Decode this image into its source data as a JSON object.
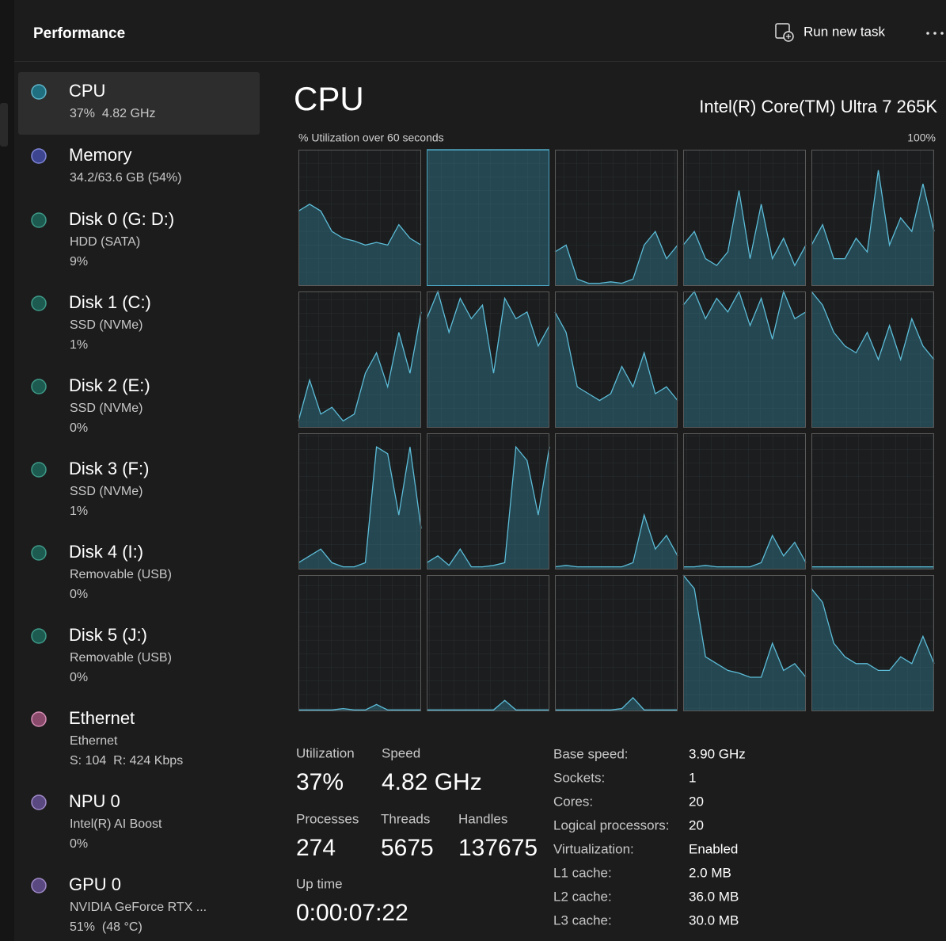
{
  "header": {
    "title": "Performance",
    "run_new_task": "Run new task"
  },
  "sidebar": [
    {
      "name": "CPU",
      "details": [
        "37%  4.82 GHz"
      ]
    },
    {
      "name": "Memory",
      "details": [
        "34.2/63.6 GB (54%)"
      ]
    },
    {
      "name": "Disk 0 (G: D:)",
      "details": [
        "HDD (SATA)",
        "9%"
      ]
    },
    {
      "name": "Disk 1 (C:)",
      "details": [
        "SSD (NVMe)",
        "1%"
      ]
    },
    {
      "name": "Disk 2 (E:)",
      "details": [
        "SSD (NVMe)",
        "0%"
      ]
    },
    {
      "name": "Disk 3 (F:)",
      "details": [
        "SSD (NVMe)",
        "1%"
      ]
    },
    {
      "name": "Disk 4 (I:)",
      "details": [
        "Removable (USB)",
        "0%"
      ]
    },
    {
      "name": "Disk 5 (J:)",
      "details": [
        "Removable (USB)",
        "0%"
      ]
    },
    {
      "name": "Ethernet",
      "details": [
        "Ethernet",
        "S: 104  R: 424 Kbps"
      ]
    },
    {
      "name": "NPU 0",
      "details": [
        "Intel(R) AI Boost",
        "0%"
      ]
    },
    {
      "name": "GPU 0",
      "details": [
        "NVIDIA GeForce RTX ...",
        "51%  (48 °C)"
      ]
    }
  ],
  "main": {
    "title": "CPU",
    "model": "Intel(R) Core(TM) Ultra 7 265K",
    "graph_caption": "% Utilization over 60 seconds",
    "graph_max_label": "100%",
    "ylim": [
      0,
      100
    ],
    "cores": [
      [
        55,
        60,
        55,
        40,
        35,
        33,
        30,
        32,
        30,
        45,
        35,
        30
      ],
      [
        100,
        100,
        100,
        100,
        100,
        100,
        100,
        100,
        100,
        100,
        100,
        100
      ],
      [
        25,
        30,
        5,
        2,
        2,
        3,
        2,
        5,
        30,
        40,
        20,
        30
      ],
      [
        30,
        40,
        20,
        15,
        25,
        70,
        20,
        60,
        20,
        35,
        15,
        30
      ],
      [
        30,
        45,
        20,
        20,
        35,
        25,
        85,
        30,
        50,
        40,
        75,
        40
      ],
      [
        5,
        35,
        10,
        15,
        5,
        10,
        40,
        55,
        30,
        70,
        40,
        85
      ],
      [
        80,
        100,
        70,
        95,
        80,
        90,
        40,
        95,
        80,
        85,
        60,
        75
      ],
      [
        85,
        70,
        30,
        25,
        20,
        25,
        45,
        30,
        55,
        25,
        30,
        20
      ],
      [
        90,
        100,
        80,
        95,
        85,
        100,
        75,
        95,
        65,
        100,
        80,
        85
      ],
      [
        100,
        90,
        70,
        60,
        55,
        70,
        50,
        75,
        50,
        80,
        60,
        50
      ],
      [
        5,
        10,
        15,
        5,
        2,
        2,
        5,
        90,
        85,
        40,
        90,
        30
      ],
      [
        5,
        10,
        3,
        15,
        2,
        2,
        3,
        5,
        90,
        80,
        40,
        90
      ],
      [
        2,
        3,
        2,
        2,
        2,
        2,
        2,
        5,
        40,
        15,
        25,
        10
      ],
      [
        2,
        2,
        3,
        2,
        2,
        2,
        2,
        5,
        25,
        10,
        20,
        5
      ],
      [
        2,
        2,
        2,
        2,
        2,
        2,
        2,
        2,
        2,
        2,
        2,
        2
      ],
      [
        1,
        1,
        1,
        1,
        2,
        1,
        1,
        5,
        1,
        1,
        1,
        1
      ],
      [
        1,
        1,
        1,
        1,
        1,
        1,
        1,
        8,
        1,
        1,
        1,
        1
      ],
      [
        1,
        1,
        1,
        1,
        1,
        1,
        2,
        10,
        1,
        1,
        1,
        1
      ],
      [
        100,
        90,
        40,
        35,
        30,
        28,
        25,
        25,
        50,
        30,
        35,
        25
      ],
      [
        90,
        80,
        50,
        40,
        35,
        35,
        30,
        30,
        40,
        35,
        55,
        35
      ]
    ]
  },
  "stats": [
    {
      "label": "Utilization",
      "value": "37%"
    },
    {
      "label": "Speed",
      "value": "4.82 GHz"
    },
    {
      "label": "Processes",
      "value": "274"
    },
    {
      "label": "Threads",
      "value": "5675"
    },
    {
      "label": "Handles",
      "value": "137675"
    },
    {
      "label": "Up time",
      "value": "0:00:07:22"
    }
  ],
  "specs": [
    {
      "label": "Base speed:",
      "value": "3.90 GHz"
    },
    {
      "label": "Sockets:",
      "value": "1"
    },
    {
      "label": "Cores:",
      "value": "20"
    },
    {
      "label": "Logical processors:",
      "value": "20"
    },
    {
      "label": "Virtualization:",
      "value": "Enabled"
    },
    {
      "label": "L1 cache:",
      "value": "2.0 MB"
    },
    {
      "label": "L2 cache:",
      "value": "36.0 MB"
    },
    {
      "label": "L3 cache:",
      "value": "30.0 MB"
    }
  ]
}
